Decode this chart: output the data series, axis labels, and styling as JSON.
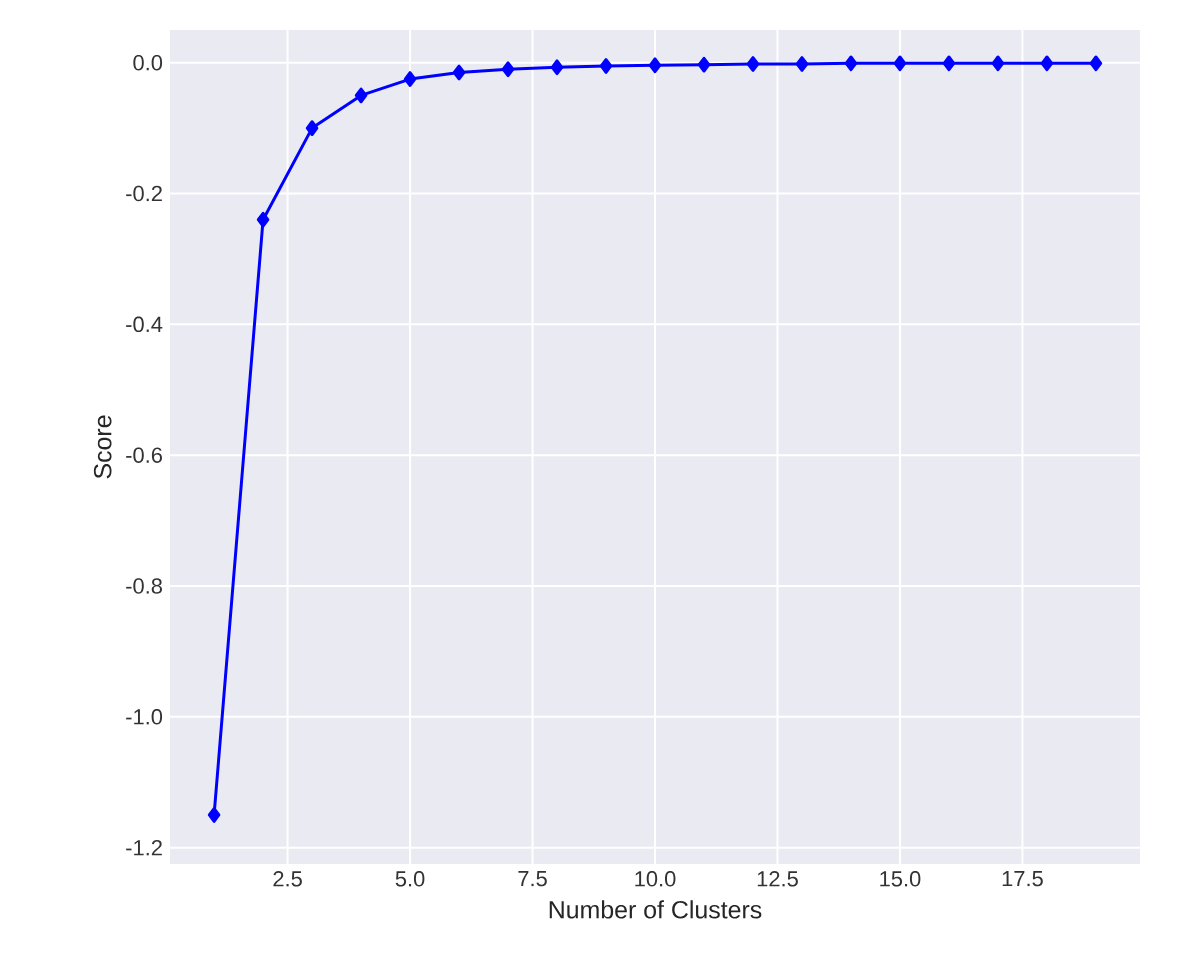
{
  "chart_data": {
    "type": "line",
    "xlabel": "Number of Clusters",
    "ylabel": "Score",
    "x": [
      1,
      2,
      3,
      4,
      5,
      6,
      7,
      8,
      9,
      10,
      11,
      12,
      13,
      14,
      15,
      16,
      17,
      18,
      19
    ],
    "series": [
      {
        "color": "#0000ff",
        "values": [
          -1.15,
          -0.24,
          -0.1,
          -0.05,
          -0.025,
          -0.015,
          -0.01,
          -0.007,
          -0.005,
          -0.004,
          -0.003,
          -0.002,
          -0.002,
          -0.001,
          -0.001,
          -0.001,
          -0.001,
          -0.001,
          -0.001
        ]
      }
    ],
    "xlim": [
      0.1,
      19.9
    ],
    "ylim": [
      -1.225,
      0.05
    ],
    "xticks": [
      2.5,
      {
        "value": 5,
        "label": "5.0"
      },
      7.5,
      {
        "value": 10,
        "label": "10.0"
      },
      12.5,
      {
        "value": 15,
        "label": "15.0"
      },
      17.5
    ],
    "yticks": [
      -1.2,
      {
        "value": -1,
        "label": "-1.0"
      },
      -0.8,
      -0.6,
      -0.4,
      -0.2,
      {
        "value": 0,
        "label": "0.0"
      }
    ],
    "grid": true,
    "marker": "diamond",
    "line_style": "solid"
  }
}
